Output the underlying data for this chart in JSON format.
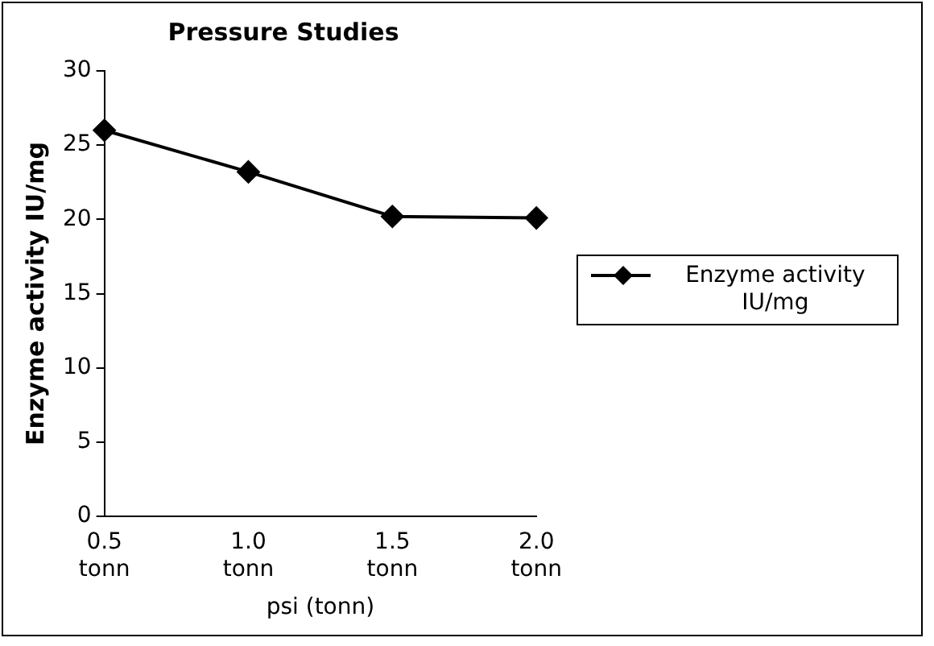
{
  "chart_data": {
    "type": "line",
    "title": "Pressure Studies",
    "xlabel": "psi (tonn)",
    "ylabel": "Enzyme activity IU/mg",
    "categories": [
      "0.5 tonn",
      "1.0 tonn",
      "1.5 tonn",
      "2.0 tonn"
    ],
    "series": [
      {
        "name": "Enzyme activity IU/mg",
        "color": "#000000",
        "values": [
          26,
          23.2,
          20.2,
          20.1
        ]
      }
    ],
    "ylim": [
      0,
      30
    ],
    "yticks": [
      0,
      5,
      10,
      15,
      20,
      25,
      30
    ],
    "grid": false,
    "legend": "right",
    "marker": "diamond",
    "line_style": "solid"
  }
}
